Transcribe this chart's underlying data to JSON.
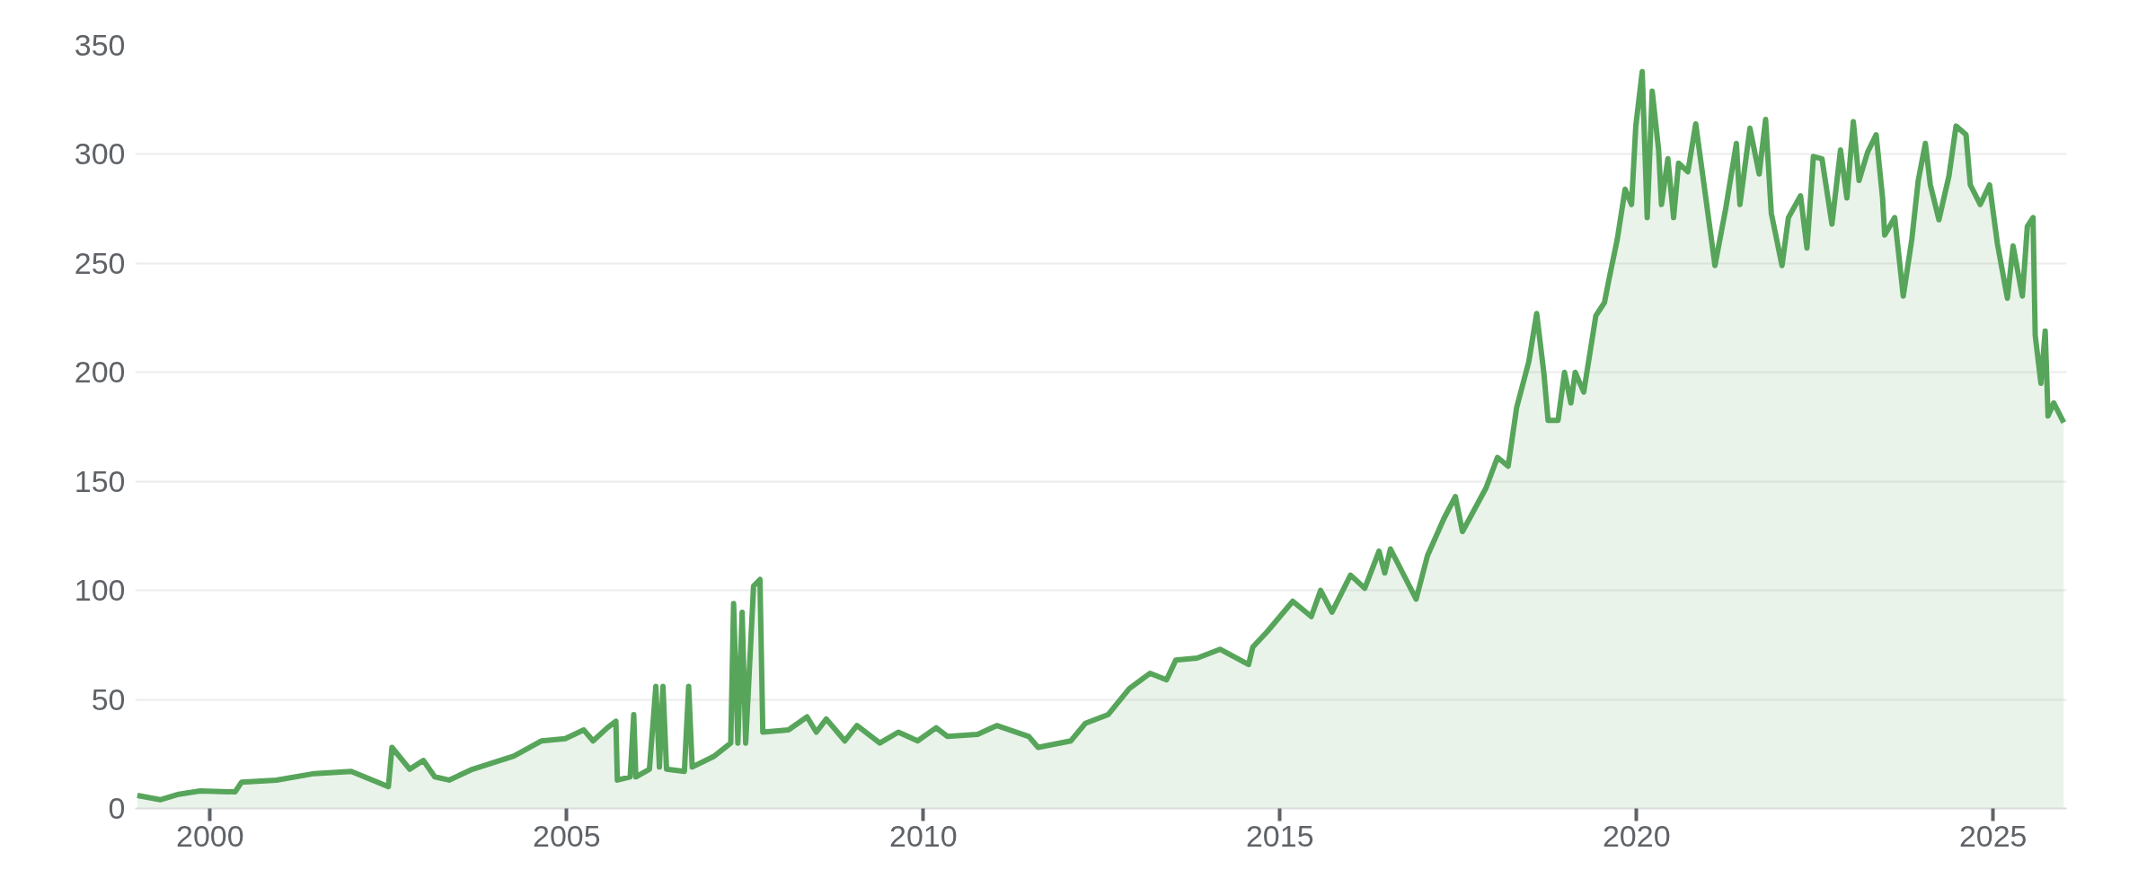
{
  "chart_data": {
    "type": "area",
    "xlim": [
      1998.95,
      2026.03
    ],
    "ylim": [
      0,
      350
    ],
    "xticks": [
      2000,
      2005,
      2010,
      2015,
      2020,
      2025
    ],
    "yticks": [
      0,
      50,
      100,
      150,
      200,
      250,
      300,
      350
    ],
    "grid": "y",
    "series": [
      {
        "color": "#57a55a",
        "x": [
          1998.98,
          1999.3,
          1999.56,
          1999.86,
          2000.35,
          2000.44,
          2000.93,
          2001.46,
          2001.98,
          2002.5,
          2002.55,
          2002.8,
          2002.99,
          2003.15,
          2003.35,
          2003.68,
          2004.26,
          2004.65,
          2004.98,
          2005.24,
          2005.37,
          2005.57,
          2005.69,
          2005.71,
          2005.89,
          2005.94,
          2005.97,
          2006.16,
          2006.25,
          2006.3,
          2006.35,
          2006.4,
          2006.65,
          2006.71,
          2006.76,
          2007.07,
          2007.3,
          2007.34,
          2007.4,
          2007.46,
          2007.51,
          2007.62,
          2007.71,
          2007.75,
          2008.11,
          2008.37,
          2008.5,
          2008.64,
          2008.9,
          2009.07,
          2009.39,
          2009.65,
          2009.92,
          2010.18,
          2010.34,
          2010.76,
          2011.03,
          2011.48,
          2011.61,
          2012.07,
          2012.27,
          2012.59,
          2012.89,
          2013.18,
          2013.41,
          2013.54,
          2013.84,
          2014.16,
          2014.56,
          2014.62,
          2014.82,
          2015.18,
          2015.44,
          2015.57,
          2015.73,
          2015.99,
          2016.19,
          2016.39,
          2016.47,
          2016.55,
          2016.91,
          2017.07,
          2017.3,
          2017.46,
          2017.56,
          2017.89,
          2018.05,
          2018.2,
          2018.32,
          2018.49,
          2018.6,
          2018.7,
          2018.76,
          2018.9,
          2018.99,
          2019.08,
          2019.14,
          2019.26,
          2019.43,
          2019.55,
          2019.61,
          2019.73,
          2019.84,
          2019.93,
          2019.99,
          2020.08,
          2020.15,
          2020.22,
          2020.31,
          2020.35,
          2020.44,
          2020.52,
          2020.59,
          2020.72,
          2020.83,
          2020.93,
          2021.1,
          2021.25,
          2021.4,
          2021.45,
          2021.59,
          2021.72,
          2021.81,
          2021.89,
          2022.04,
          2022.13,
          2022.3,
          2022.39,
          2022.48,
          2022.6,
          2022.74,
          2022.86,
          2022.95,
          2023.04,
          2023.12,
          2023.24,
          2023.36,
          2023.45,
          2023.48,
          2023.62,
          2023.74,
          2023.86,
          2023.95,
          2024.05,
          2024.12,
          2024.24,
          2024.38,
          2024.48,
          2024.62,
          2024.68,
          2024.82,
          2024.95,
          2025.06,
          2025.2,
          2025.28,
          2025.41,
          2025.48,
          2025.56,
          2025.59,
          2025.67,
          2025.73,
          2025.77,
          2025.85,
          2025.99
        ],
        "values": [
          6,
          4,
          6.5,
          8,
          7.6,
          12,
          13,
          16,
          17,
          10,
          28,
          18,
          22,
          14.5,
          13,
          18,
          24,
          31,
          32,
          36,
          31,
          37,
          40,
          13,
          14.5,
          43,
          14.5,
          18,
          56,
          19,
          56,
          18,
          17,
          56,
          19,
          24,
          30,
          94,
          30,
          90,
          30,
          102,
          105,
          35,
          36,
          42,
          35,
          41,
          31,
          38,
          30,
          35,
          31,
          37,
          33,
          34,
          38,
          33,
          28,
          31,
          39,
          43,
          55,
          62,
          59,
          68,
          69,
          73,
          66,
          74,
          81,
          95,
          88,
          100,
          90,
          107,
          101,
          118,
          108,
          119,
          96,
          116,
          133,
          143,
          127,
          147,
          161,
          157,
          184,
          205,
          227,
          200,
          178,
          178,
          200,
          186,
          200,
          191,
          226,
          232,
          242,
          261,
          284,
          277,
          313,
          338,
          271,
          329,
          302,
          277,
          298,
          271,
          296,
          292,
          314,
          290,
          249,
          275,
          305,
          277,
          312,
          291,
          316,
          273,
          249,
          271,
          281,
          257,
          299,
          298,
          268,
          302,
          280,
          315,
          288,
          301,
          309,
          280,
          263,
          271,
          235,
          261,
          288,
          305,
          286,
          270,
          290,
          313,
          309,
          286,
          277,
          286,
          259,
          234,
          258,
          235,
          267,
          271,
          217,
          195,
          219,
          180,
          186,
          177
        ]
      }
    ]
  }
}
